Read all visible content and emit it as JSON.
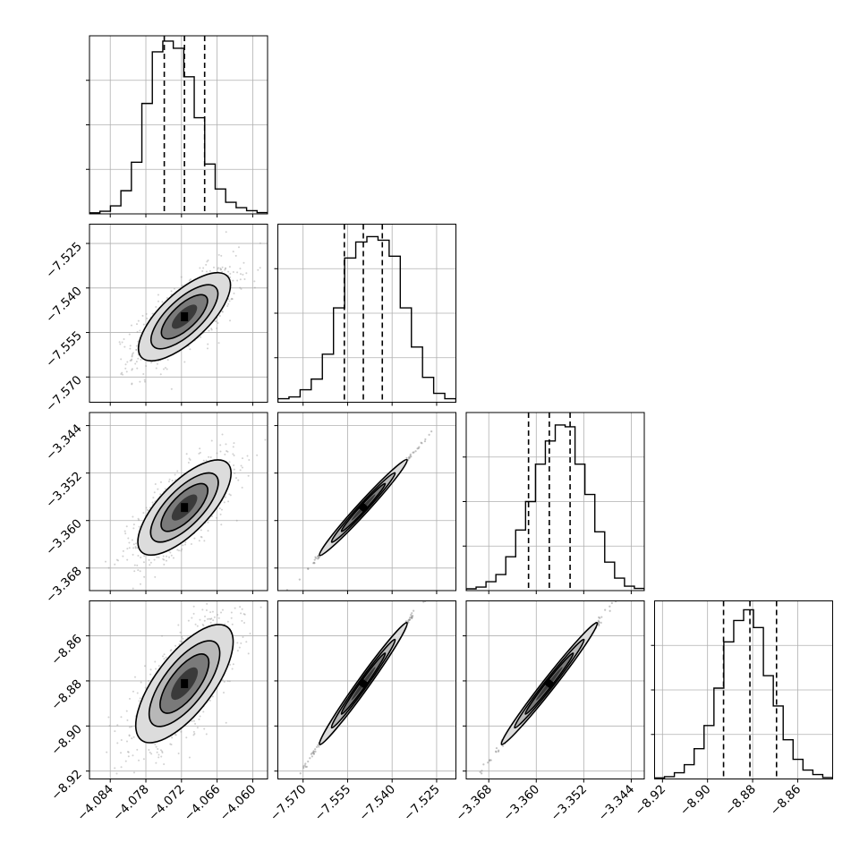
{
  "chart_data": {
    "type": "corner",
    "grid": true,
    "parameters": [
      {
        "ticks": [
          -4.084,
          -4.078,
          -4.072,
          -4.066,
          -4.06
        ],
        "tick_labels": [
          "−4.084",
          "−4.078",
          "−4.072",
          "−4.066",
          "−4.060"
        ],
        "range": [
          -4.0875,
          -4.0575
        ],
        "quantiles": [
          -4.0749,
          -4.0715,
          -4.0681
        ],
        "histogram": [
          0.006,
          0.015,
          0.045,
          0.13,
          0.29,
          0.62,
          0.91,
          0.97,
          0.93,
          0.77,
          0.54,
          0.28,
          0.14,
          0.065,
          0.035,
          0.018,
          0.007
        ]
      },
      {
        "ticks": [
          -7.57,
          -7.555,
          -7.54,
          -7.525
        ],
        "tick_labels": [
          "−7.570",
          "−7.555",
          "−7.540",
          "−7.525"
        ],
        "range": [
          -7.5785,
          -7.5185
        ],
        "quantiles": [
          -7.5561,
          -7.5497,
          -7.5433
        ],
        "histogram": [
          0.02,
          0.03,
          0.07,
          0.13,
          0.27,
          0.53,
          0.81,
          0.9,
          0.93,
          0.91,
          0.82,
          0.53,
          0.31,
          0.14,
          0.05,
          0.02
        ]
      },
      {
        "ticks": [
          -3.368,
          -3.36,
          -3.352,
          -3.344
        ],
        "tick_labels": [
          "−3.368",
          "−3.360",
          "−3.352",
          "−3.344"
        ],
        "range": [
          -3.3718,
          -3.3418
        ],
        "quantiles": [
          -3.3613,
          -3.3578,
          -3.3543
        ],
        "histogram": [
          0.01,
          0.02,
          0.05,
          0.09,
          0.19,
          0.34,
          0.5,
          0.71,
          0.84,
          0.93,
          0.92,
          0.71,
          0.54,
          0.33,
          0.16,
          0.07,
          0.025,
          0.012
        ]
      },
      {
        "ticks": [
          -8.92,
          -8.9,
          -8.88,
          -8.86
        ],
        "tick_labels": [
          "−8.92",
          "−8.90",
          "−8.88",
          "−8.86"
        ],
        "range": [
          -8.9235,
          -8.8445
        ],
        "quantiles": [
          -8.8929,
          -8.8812,
          -8.8694
        ],
        "histogram": [
          0.006,
          0.013,
          0.035,
          0.08,
          0.17,
          0.3,
          0.51,
          0.77,
          0.89,
          0.95,
          0.85,
          0.58,
          0.41,
          0.22,
          0.11,
          0.05,
          0.025,
          0.008
        ]
      }
    ]
  }
}
